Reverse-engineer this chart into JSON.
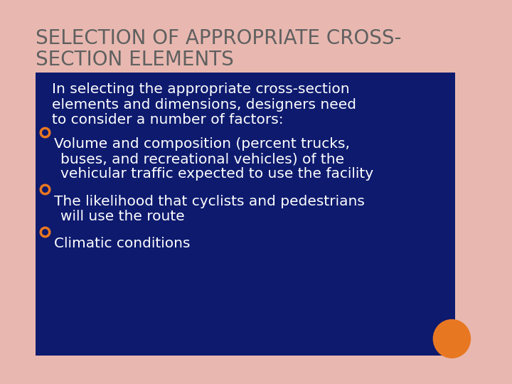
{
  "background_color": "#e8b8b0",
  "slide_bg": "#ffffff",
  "title_line1": "SELECTION OF APPROPRIATE CROSS-",
  "title_line2": "SECTION ELEMENTS",
  "title_color": "#606060",
  "box_bg": "#0d1a6e",
  "box_text_color": "#ffffff",
  "bullet_symbol_color": "#e87722",
  "intro_text_lines": [
    "In selecting the appropriate cross-section",
    "elements and dimensions, designers need",
    "to consider a number of factors:"
  ],
  "bullets": [
    [
      "Volume and composition (percent trucks,",
      "buses, and recreational vehicles) of the",
      "vehicular traffic expected to use the facility"
    ],
    [
      "The likelihood that cyclists and pedestrians",
      "will use the route"
    ],
    [
      "Climatic conditions"
    ]
  ],
  "orange_circle_color": "#e87722",
  "title_fontsize": 20,
  "intro_fontsize": 14.5,
  "bullet_fontsize": 14.5
}
